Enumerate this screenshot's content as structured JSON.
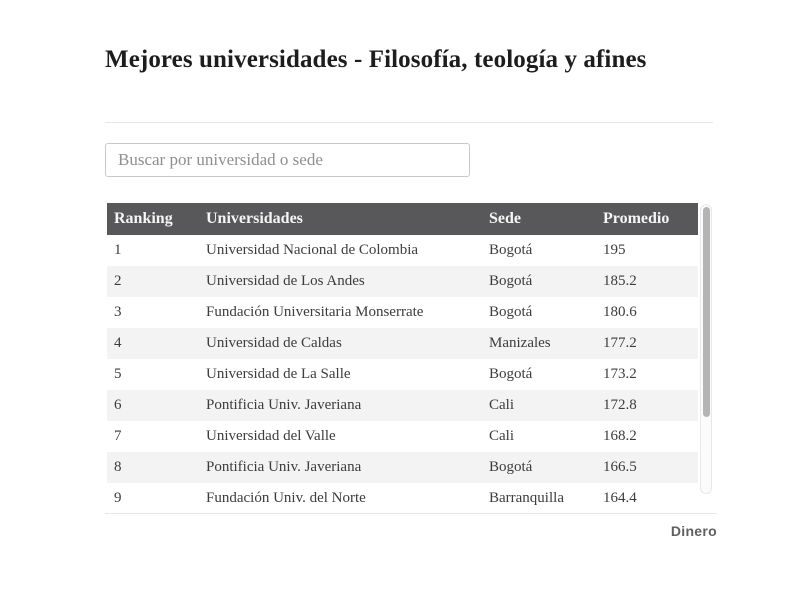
{
  "page": {
    "title": "Mejores universidades - Filosofía, teología y afines",
    "brand": "Dinero"
  },
  "search": {
    "placeholder": "Buscar por universidad o sede",
    "value": ""
  },
  "table": {
    "columns": [
      "Ranking",
      "Universidades",
      "Sede",
      "Promedio"
    ],
    "rows": [
      {
        "ranking": "1",
        "universidad": "Universidad Nacional de Colombia",
        "sede": "Bogotá",
        "promedio": "195"
      },
      {
        "ranking": "2",
        "universidad": "Universidad de Los Andes",
        "sede": "Bogotá",
        "promedio": "185.2"
      },
      {
        "ranking": "3",
        "universidad": "Fundación Universitaria Monserrate",
        "sede": "Bogotá",
        "promedio": "180.6"
      },
      {
        "ranking": "4",
        "universidad": "Universidad de Caldas",
        "sede": "Manizales",
        "promedio": "177.2"
      },
      {
        "ranking": "5",
        "universidad": "Universidad de La Salle",
        "sede": "Bogotá",
        "promedio": "173.2"
      },
      {
        "ranking": "6",
        "universidad": "Pontificia Univ. Javeriana",
        "sede": "Cali",
        "promedio": "172.8"
      },
      {
        "ranking": "7",
        "universidad": "Universidad del Valle",
        "sede": "Cali",
        "promedio": "168.2"
      },
      {
        "ranking": "8",
        "universidad": "Pontificia Univ. Javeriana",
        "sede": "Bogotá",
        "promedio": "166.5"
      },
      {
        "ranking": "9",
        "universidad": "Fundación Univ. del Norte",
        "sede": "Barranquilla",
        "promedio": "164.4"
      }
    ]
  },
  "colors": {
    "header_bg": "#58585a",
    "header_text": "#f5f5f5",
    "stripe": "#f3f3f4",
    "title_text": "#1d1d1d",
    "body_text": "#3c3c3c",
    "divider": "#e7e7e7",
    "scroll_thumb": "#b4b4b4"
  }
}
